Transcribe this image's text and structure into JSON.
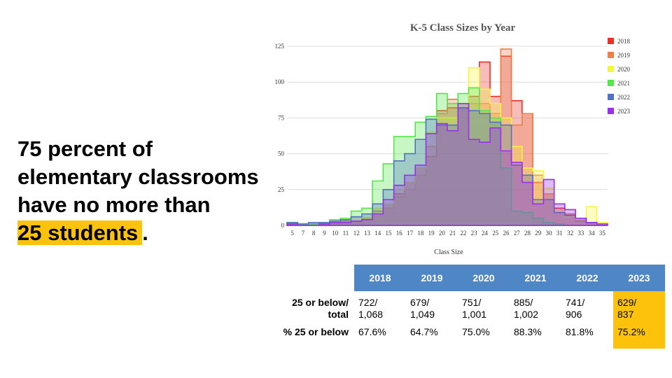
{
  "headline": {
    "line1": "75 percent of",
    "line2": "elementary classrooms",
    "line3": "have no more than",
    "highlight": "25 students",
    "end": "."
  },
  "table": {
    "headers": [
      "2018",
      "2019",
      "2020",
      "2021",
      "2022",
      "2023"
    ],
    "row1_label_a": "25 or below/",
    "row1_label_b": "total",
    "row1": [
      {
        "a": "722/",
        "b": "1,068"
      },
      {
        "a": "679/",
        "b": "1,049"
      },
      {
        "a": "751/",
        "b": "1,001"
      },
      {
        "a": "885/",
        "b": "1,002"
      },
      {
        "a": "741/",
        "b": "906"
      },
      {
        "a": "629/",
        "b": "837"
      }
    ],
    "row2_label": "% 25 or below",
    "row2": [
      "67.6%",
      "64.7%",
      "75.0%",
      "88.3%",
      "81.8%",
      "75.2%"
    ],
    "highlight_color": "#fcc20c",
    "header_color": "#4f86c6"
  },
  "chart_data": {
    "type": "area",
    "title": "K-5 Class Sizes by Year",
    "xlabel": "Class Size",
    "ylabel": "",
    "ylim": [
      0,
      125
    ],
    "yticks": [
      0,
      25,
      50,
      75,
      100,
      125
    ],
    "categories": [
      "5",
      "7",
      "8",
      "9",
      "10",
      "11",
      "12",
      "13",
      "14",
      "15",
      "16",
      "17",
      "18",
      "19",
      "20",
      "21",
      "22",
      "23",
      "24",
      "25",
      "26",
      "27",
      "28",
      "29",
      "30",
      "31",
      "32",
      "33",
      "34",
      "35"
    ],
    "legend_position": "right",
    "series": [
      {
        "name": "2018",
        "color": "#e8322a",
        "values": [
          2,
          0,
          0,
          1,
          2,
          3,
          3,
          4,
          10,
          15,
          22,
          30,
          40,
          48,
          80,
          82,
          82,
          90,
          114,
          90,
          118,
          87,
          78,
          30,
          22,
          12,
          8,
          3,
          2,
          0
        ]
      },
      {
        "name": "2019",
        "color": "#e8814a",
        "values": [
          1,
          0,
          1,
          1,
          1,
          2,
          3,
          5,
          8,
          12,
          20,
          25,
          35,
          55,
          78,
          88,
          82,
          85,
          85,
          78,
          123,
          70,
          78,
          35,
          22,
          10,
          8,
          4,
          2,
          0
        ]
      },
      {
        "name": "2020",
        "color": "#f4f442",
        "values": [
          2,
          1,
          1,
          2,
          3,
          4,
          6,
          8,
          12,
          15,
          25,
          30,
          40,
          65,
          75,
          75,
          85,
          110,
          95,
          85,
          75,
          55,
          40,
          38,
          26,
          10,
          6,
          4,
          13,
          2
        ]
      },
      {
        "name": "2021",
        "color": "#55e64a",
        "values": [
          2,
          1,
          1,
          2,
          4,
          5,
          10,
          12,
          31,
          43,
          62,
          62,
          72,
          76,
          92,
          85,
          92,
          96,
          80,
          75,
          40,
          10,
          9,
          5,
          2,
          1,
          0,
          0,
          0,
          0
        ]
      },
      {
        "name": "2022",
        "color": "#4f72c7",
        "values": [
          2,
          1,
          2,
          2,
          3,
          4,
          6,
          8,
          15,
          25,
          45,
          50,
          60,
          74,
          70,
          70,
          82,
          80,
          78,
          72,
          70,
          42,
          35,
          18,
          18,
          9,
          7,
          5,
          2,
          0
        ]
      },
      {
        "name": "2023",
        "color": "#9b30e8",
        "values": [
          1,
          0,
          0,
          1,
          2,
          2,
          3,
          4,
          8,
          18,
          28,
          35,
          42,
          64,
          71,
          66,
          85,
          60,
          58,
          68,
          52,
          44,
          30,
          15,
          32,
          15,
          11,
          5,
          2,
          1
        ]
      }
    ]
  }
}
